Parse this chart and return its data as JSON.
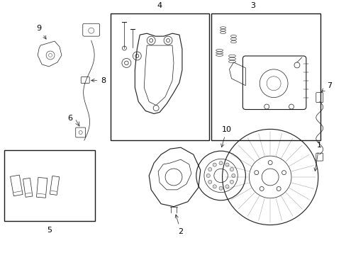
{
  "background_color": "#ffffff",
  "line_color": "#1a1a1a",
  "label_color": "#000000",
  "figsize": [
    4.89,
    3.6
  ],
  "dpi": 100,
  "lw_main": 0.8,
  "lw_thin": 0.5,
  "label_fs": 8.0
}
